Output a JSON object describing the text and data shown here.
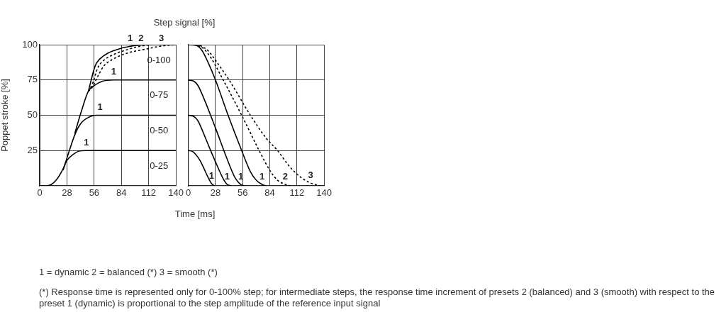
{
  "chart_data": [
    {
      "type": "line",
      "title": "Step signal [%]",
      "xlabel": "Time [ms]",
      "ylabel": "Poppet stroke [%]",
      "xlim": [
        0,
        140
      ],
      "xticks": [
        0,
        28,
        56,
        84,
        112,
        140
      ],
      "ylim": [
        0,
        100
      ],
      "yticks": [
        25,
        50,
        75,
        100
      ],
      "grid": true,
      "legend": false,
      "marker": "none",
      "series": [
        {
          "color": "#000000",
          "line_style": "solid",
          "x": [
            0,
            6,
            12,
            18,
            24,
            28,
            34,
            40,
            48,
            140
          ],
          "values": [
            0,
            0,
            1,
            5,
            12,
            18,
            22,
            24.5,
            25,
            25
          ]
        },
        {
          "color": "#000000",
          "line_style": "solid",
          "x": [
            24,
            30,
            36,
            42,
            50,
            58,
            140
          ],
          "values": [
            11,
            24,
            36,
            44,
            48.5,
            50,
            50
          ]
        },
        {
          "color": "#000000",
          "line_style": "solid",
          "x": [
            36,
            42,
            50,
            56,
            64,
            76,
            140
          ],
          "values": [
            37,
            51,
            67,
            71,
            74,
            75,
            75
          ]
        },
        {
          "color": "#000000",
          "line_style": "solid",
          "x": [
            50,
            57,
            62,
            70,
            84,
            93,
            100,
            112,
            140
          ],
          "values": [
            67,
            85,
            90,
            94,
            97.5,
            98.8,
            99.5,
            100,
            100
          ]
        },
        {
          "color": "#000000",
          "line_style": "dashed",
          "x": [
            50,
            54,
            60,
            66,
            76,
            90,
            104,
            116
          ],
          "values": [
            67,
            72,
            84,
            89,
            93,
            96.5,
            99,
            100
          ]
        },
        {
          "color": "#000000",
          "line_style": "dashed",
          "x": [
            50,
            54,
            60,
            66,
            76,
            90,
            110,
            125,
            140
          ],
          "values": [
            67,
            70,
            78,
            85,
            90,
            94,
            97,
            99,
            100
          ]
        }
      ],
      "annotations": [
        {
          "text": "1",
          "x": 48,
          "y": 25
        },
        {
          "text": "1",
          "x": 62,
          "y": 50
        },
        {
          "text": "1",
          "x": 76,
          "y": 75
        },
        {
          "text": "1",
          "x": 93,
          "y": 98.8
        },
        {
          "text": "2",
          "x": 104,
          "y": 99
        },
        {
          "text": "3",
          "x": 125,
          "y": 99
        },
        {
          "text": "0-100",
          "x": 140,
          "y": 100
        },
        {
          "text": "0-75",
          "x": 140,
          "y": 75
        },
        {
          "text": "0-50",
          "x": 140,
          "y": 50
        },
        {
          "text": "0-25",
          "x": 140,
          "y": 25
        },
        "1 = dynamic   2 = balanced (*)   3 = smooth (*)",
        "(*) Response time is represented only for 0-100% step; for intermediate steps, the response time increment of presets 2 (balanced) and 3 (smooth) with respect to the preset 1 (dynamic) is proportional to the step amplitude of the reference input signal"
      ]
    },
    {
      "type": "line",
      "xlim": [
        0,
        140
      ],
      "xticks": [
        0,
        28,
        56,
        84,
        112,
        140
      ],
      "ylim": [
        0,
        100
      ],
      "yticks": [
        25,
        50,
        75,
        100
      ],
      "grid": true,
      "legend": false,
      "marker": "none",
      "tick_labels": "x",
      "series": [
        {
          "color": "#000000",
          "line_style": "solid",
          "x": [
            0,
            4,
            8,
            12,
            16,
            20,
            24,
            27
          ],
          "values": [
            25,
            24.5,
            22,
            18,
            12.5,
            6.5,
            1.5,
            0
          ]
        },
        {
          "color": "#000000",
          "line_style": "solid",
          "x": [
            0,
            6,
            10,
            14,
            20,
            28,
            36,
            40,
            44
          ],
          "values": [
            50,
            49,
            46,
            40,
            30,
            17,
            5,
            1,
            0
          ]
        },
        {
          "color": "#000000",
          "line_style": "solid",
          "x": [
            0,
            6,
            10,
            16,
            28,
            40,
            48,
            54,
            58
          ],
          "values": [
            75,
            74,
            71,
            62,
            41,
            19,
            6,
            1,
            0
          ]
        },
        {
          "color": "#000000",
          "line_style": "solid",
          "x": [
            0,
            8,
            14,
            20,
            28,
            41,
            55,
            64,
            70,
            76,
            80
          ],
          "values": [
            100,
            99.5,
            96,
            88,
            75,
            50,
            25,
            10,
            4,
            1,
            0
          ]
        },
        {
          "color": "#000000",
          "line_style": "dashed",
          "x": [
            10,
            16,
            24,
            36,
            55,
            73,
            84,
            92,
            100,
            106
          ],
          "values": [
            99.5,
            97,
            90,
            75,
            50,
            25,
            11,
            4,
            1,
            0
          ]
        },
        {
          "color": "#000000",
          "line_style": "dashed",
          "x": [
            12,
            20,
            30,
            42,
            64,
            80,
            92,
            104,
            116,
            126,
            136
          ],
          "values": [
            99.5,
            96,
            87,
            75,
            50,
            34,
            25,
            14,
            6,
            2,
            0
          ]
        }
      ],
      "annotations": [
        {
          "text": "1",
          "x": 24,
          "y": 1.5
        },
        {
          "text": "1",
          "x": 40,
          "y": 1
        },
        {
          "text": "1",
          "x": 54,
          "y": 1
        },
        {
          "text": "1",
          "x": 76,
          "y": 1
        },
        {
          "text": "2",
          "x": 100,
          "y": 1
        },
        {
          "text": "3",
          "x": 126,
          "y": 2
        }
      ]
    }
  ]
}
